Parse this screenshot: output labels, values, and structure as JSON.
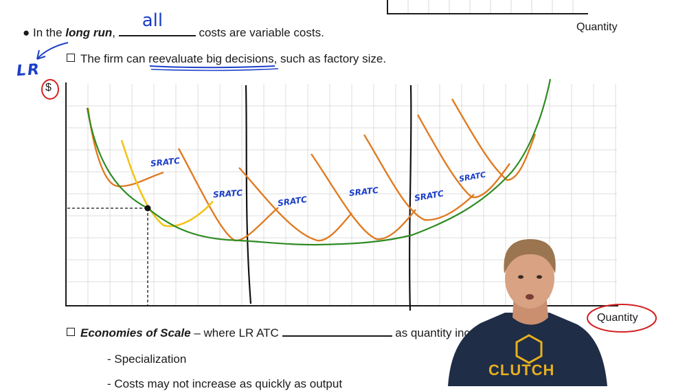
{
  "top_chart": {
    "x_label": "Quantity"
  },
  "bullet1": {
    "prefix": "In the ",
    "emphasis": "long run",
    "comma": ",",
    "handwritten_answer": "all",
    "suffix": " costs are variable costs."
  },
  "sub_bullet1": {
    "text_before": "The firm can ",
    "underlined": "reevaluate big decisions,",
    "text_after": " such as factory size."
  },
  "annotations": {
    "lr": "LR",
    "dollar": "$",
    "srs": [
      "SRATC",
      "SRATC",
      "SRATC",
      "SRATC",
      "SRATC",
      "SRATC"
    ]
  },
  "main_chart": {
    "x_label": "Quantity"
  },
  "sub_bullet2": {
    "emphasis": "Economies of Scale",
    "text_before": " – where LR ATC ",
    "text_after": " as quantity inc"
  },
  "list": [
    "- Specialization",
    "- Costs may not increase as quickly as output"
  ],
  "shirt_logo": "CLUTCH",
  "colors": {
    "lratc": "#2e8b22",
    "srates": "#e07b22",
    "highlight_sratc": "#f2c418",
    "ink_blue": "#1b3fc9",
    "ink_red": "#d42020"
  }
}
